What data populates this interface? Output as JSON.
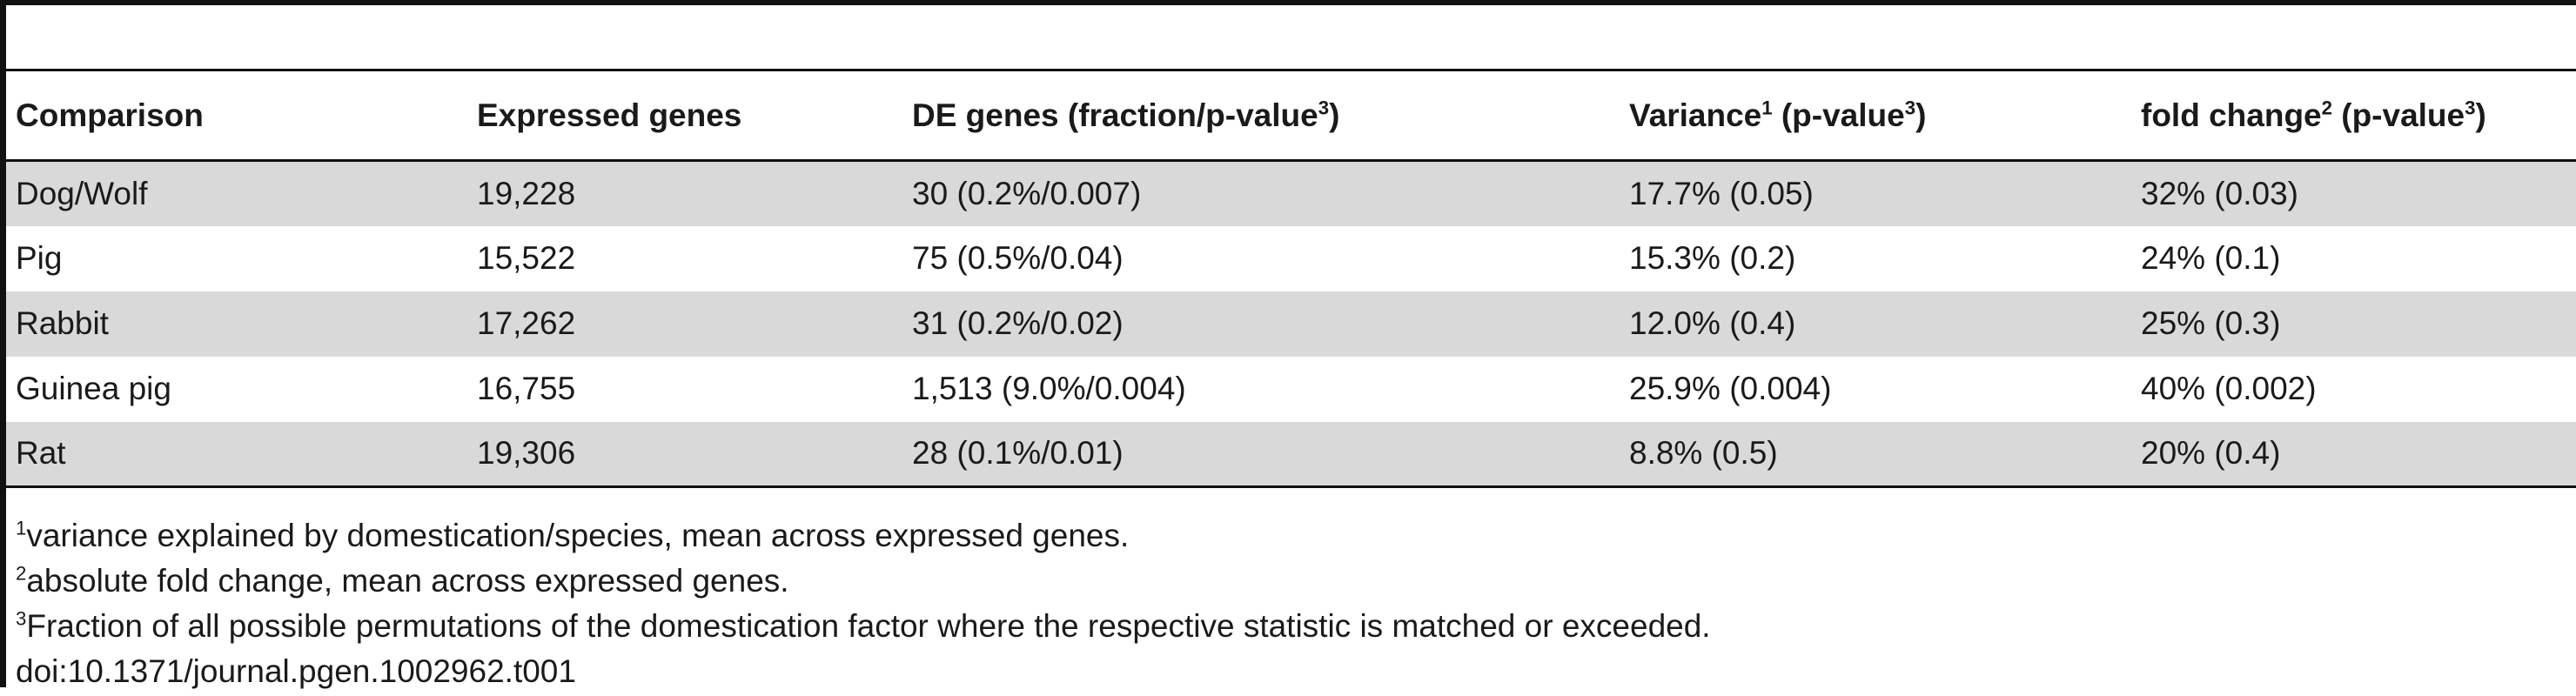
{
  "table": {
    "headers": [
      {
        "text": "Comparison",
        "sup": "",
        "after": ""
      },
      {
        "text": "Expressed genes",
        "sup": "",
        "after": ""
      },
      {
        "text": "DE genes (fraction/p-value",
        "sup": "3",
        "after": ")"
      },
      {
        "text": "Variance",
        "sup": "1",
        "after": " (p-value",
        "sup2": "3",
        "after2": ")"
      },
      {
        "text": "fold change",
        "sup": "2",
        "after": " (p-value",
        "sup2": "3",
        "after2": ")"
      }
    ],
    "rows": [
      {
        "comparison": "Dog/Wolf",
        "expressed": "19,228",
        "de": "30 (0.2%/0.007)",
        "variance": "17.7% (0.05)",
        "fold": "32% (0.03)"
      },
      {
        "comparison": "Pig",
        "expressed": "15,522",
        "de": "75 (0.5%/0.04)",
        "variance": "15.3% (0.2)",
        "fold": "24% (0.1)"
      },
      {
        "comparison": "Rabbit",
        "expressed": "17,262",
        "de": "31 (0.2%/0.02)",
        "variance": "12.0% (0.4)",
        "fold": "25% (0.3)"
      },
      {
        "comparison": "Guinea pig",
        "expressed": "16,755",
        "de": "1,513 (9.0%/0.004)",
        "variance": "25.9% (0.004)",
        "fold": "40% (0.002)"
      },
      {
        "comparison": "Rat",
        "expressed": "19,306",
        "de": "28 (0.1%/0.01)",
        "variance": "8.8% (0.5)",
        "fold": "20% (0.4)"
      }
    ]
  },
  "footnotes": [
    {
      "mark": "1",
      "text": "variance explained by domestication/species, mean across expressed genes."
    },
    {
      "mark": "2",
      "text": "absolute fold change, mean across expressed genes."
    },
    {
      "mark": "3",
      "text": "Fraction of all possible permutations of the domestication factor where the respective statistic is matched or exceeded."
    }
  ],
  "doi": "doi:10.1371/journal.pgen.1002962.t001"
}
